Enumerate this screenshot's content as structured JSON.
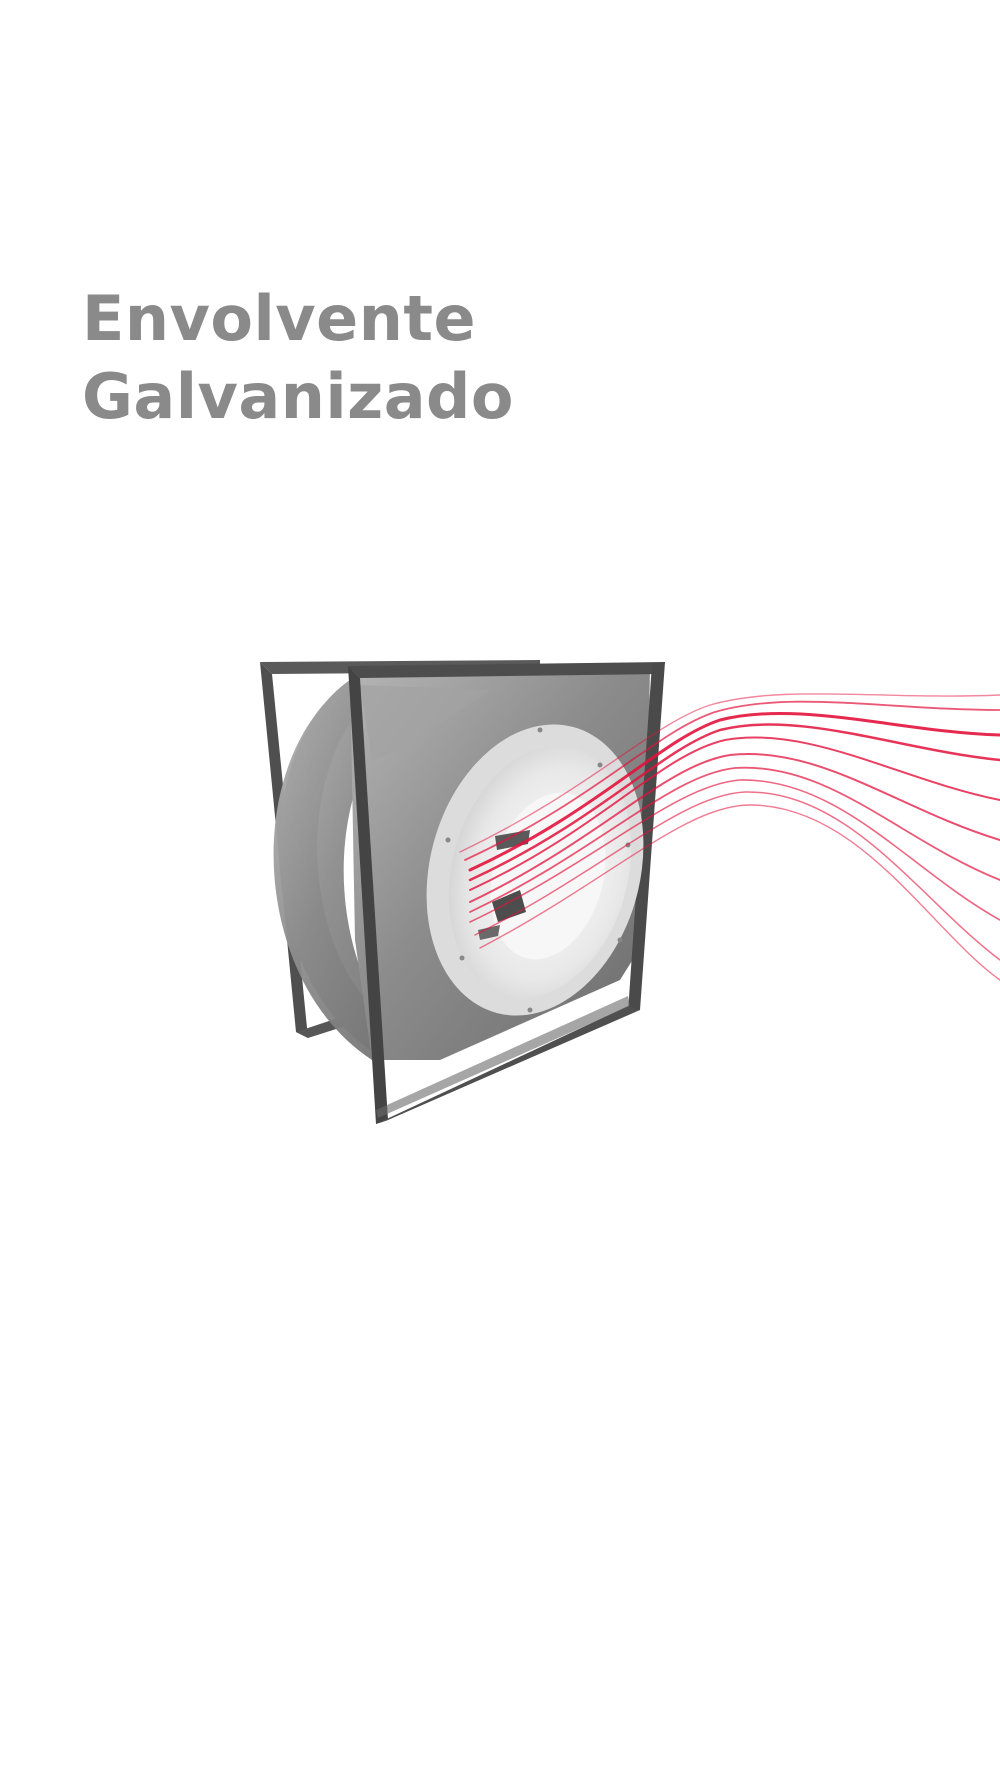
{
  "headline": {
    "line1": "Envolvente",
    "line2": "Galvanizado"
  },
  "illustration": {
    "icon": "centrifugal-fan-icon",
    "airflow_color": "#e3123c",
    "housing_color": "#8f8f8f",
    "inlet_color": "#f0f0f0"
  }
}
